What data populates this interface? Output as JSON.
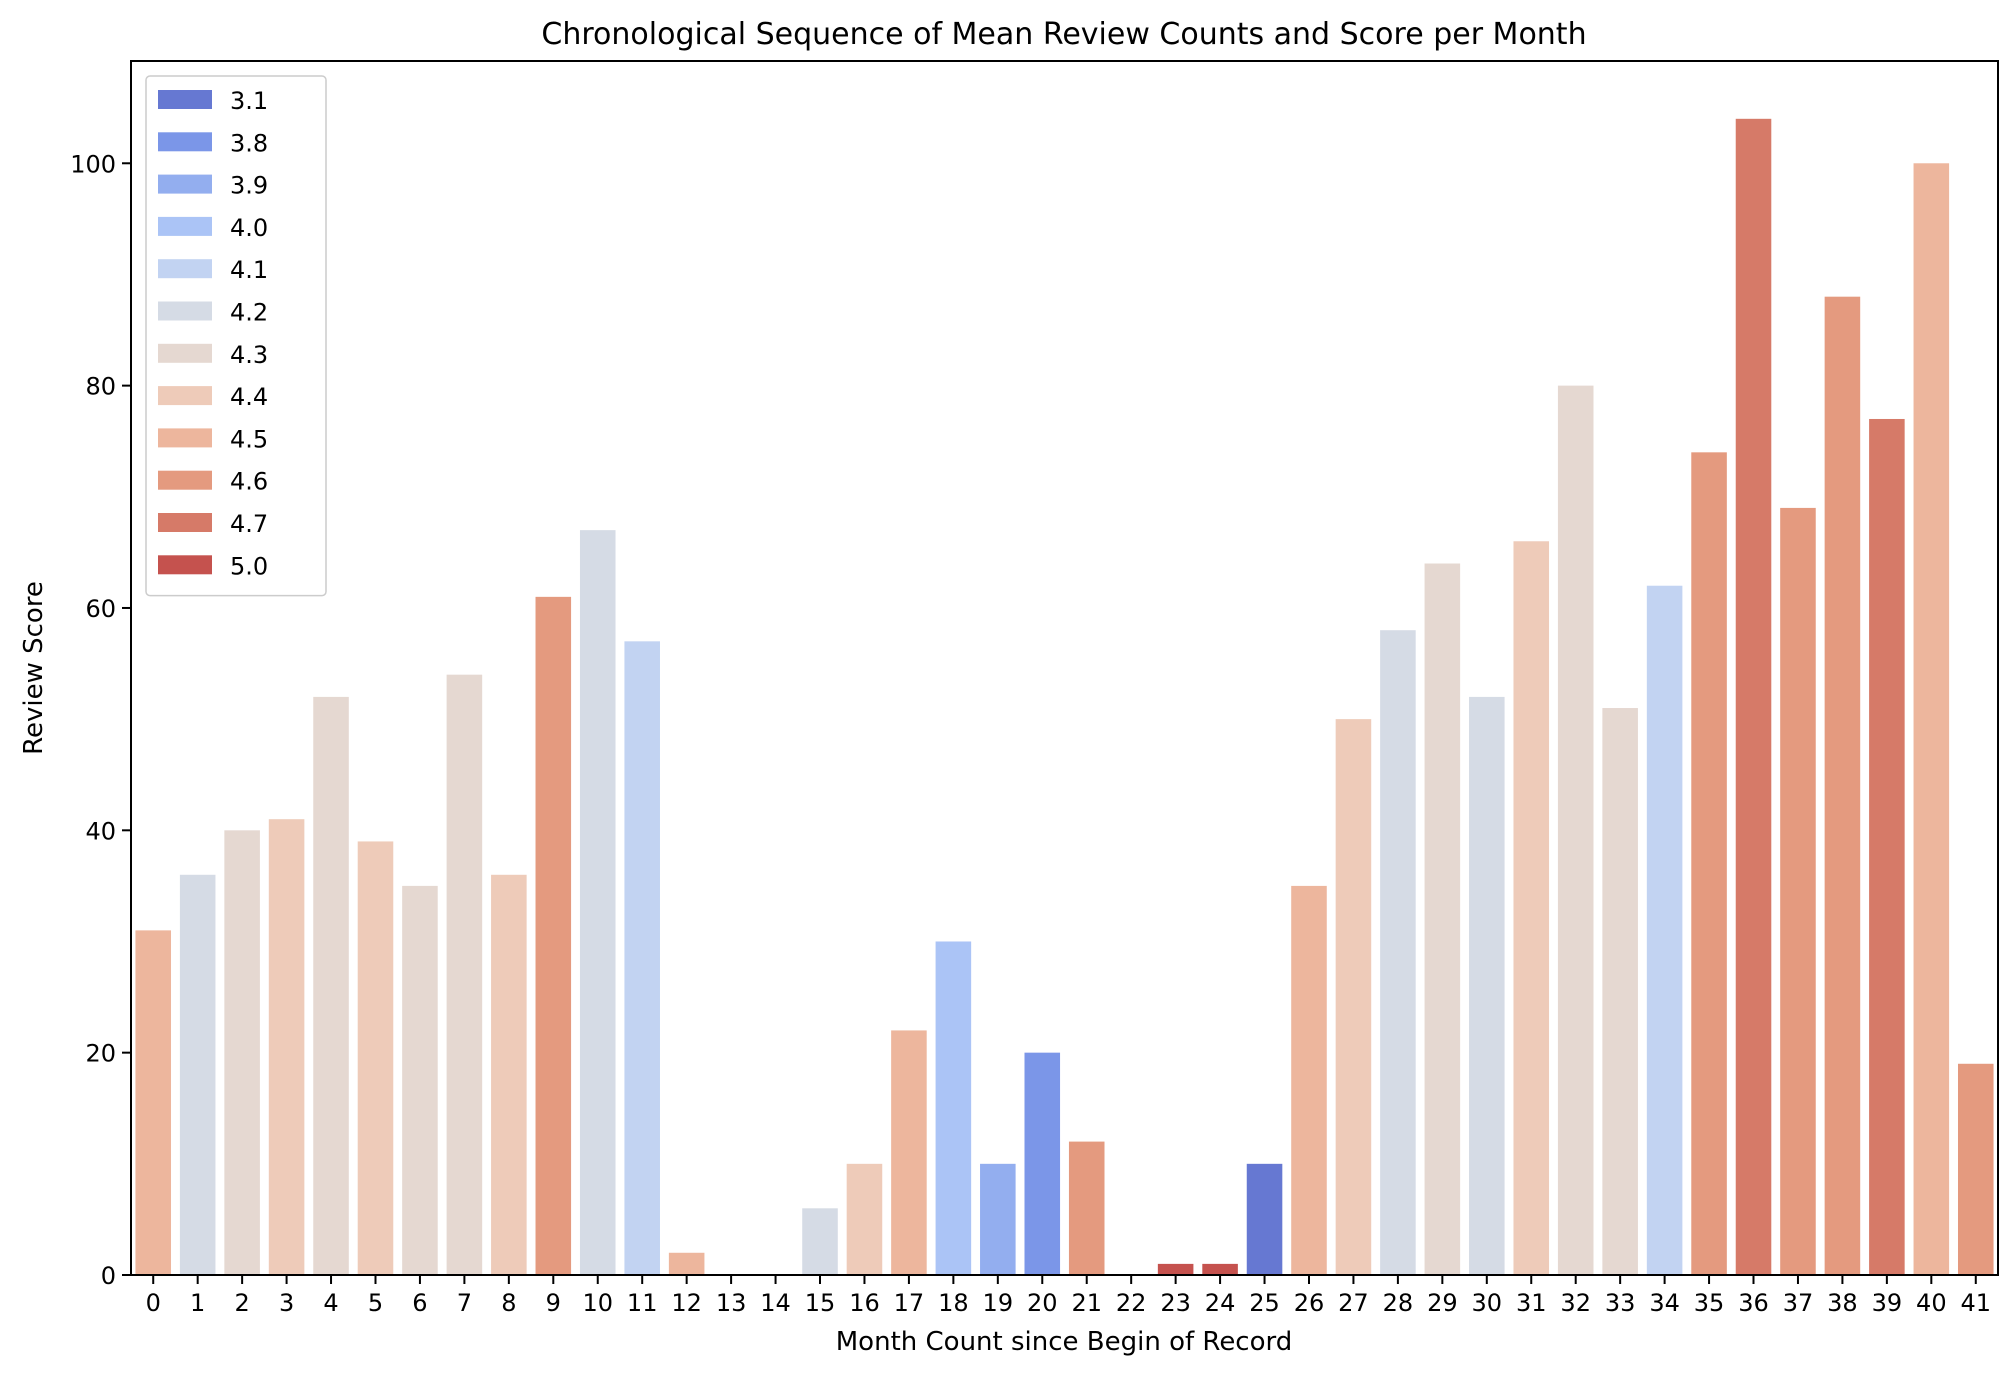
{
  "chart_data": {
    "type": "bar",
    "title": "Chronological Sequence of Mean Review Counts and Score per Month",
    "xlabel": "Month Count since Begin of Record",
    "ylabel": "Review Score",
    "ylim": [
      0,
      109.2
    ],
    "yticks": [
      0,
      20,
      40,
      60,
      80,
      100
    ],
    "grid": false,
    "legend_position": "top-left",
    "categories": [
      "0",
      "1",
      "2",
      "3",
      "4",
      "5",
      "6",
      "7",
      "8",
      "9",
      "10",
      "11",
      "12",
      "13",
      "14",
      "15",
      "16",
      "17",
      "18",
      "19",
      "20",
      "21",
      "22",
      "23",
      "24",
      "25",
      "26",
      "27",
      "28",
      "29",
      "30",
      "31",
      "32",
      "33",
      "34",
      "35",
      "36",
      "37",
      "38",
      "39",
      "40",
      "41"
    ],
    "values": [
      31,
      36,
      40,
      41,
      52,
      39,
      35,
      54,
      36,
      61,
      67,
      57,
      2,
      0,
      0,
      6,
      10,
      22,
      30,
      10,
      20,
      12,
      0,
      1,
      1,
      10,
      35,
      50,
      58,
      64,
      52,
      66,
      80,
      51,
      62,
      74,
      104,
      69,
      88,
      77,
      100,
      19
    ],
    "score": [
      "4.5",
      "4.2",
      "4.3",
      "4.4",
      "4.3",
      "4.4",
      "4.3",
      "4.3",
      "4.4",
      "4.6",
      "4.2",
      "4.1",
      "4.5",
      null,
      null,
      "4.2",
      "4.4",
      "4.5",
      "4.0",
      "3.9",
      "3.8",
      "4.6",
      null,
      "5.0",
      "5.0",
      "3.1",
      "4.5",
      "4.4",
      "4.2",
      "4.3",
      "4.2",
      "4.4",
      "4.3",
      "4.3",
      "4.1",
      "4.6",
      "4.7",
      "4.6",
      "4.6",
      "4.7",
      "4.5",
      "4.6"
    ],
    "legend": [
      {
        "label": "3.1",
        "color": "#6678d2"
      },
      {
        "label": "3.8",
        "color": "#7b96e8"
      },
      {
        "label": "3.9",
        "color": "#93aeef"
      },
      {
        "label": "4.0",
        "color": "#abc4f6"
      },
      {
        "label": "4.1",
        "color": "#c2d3f2"
      },
      {
        "label": "4.2",
        "color": "#d5dbe5"
      },
      {
        "label": "4.3",
        "color": "#e5d8d1"
      },
      {
        "label": "4.4",
        "color": "#eecbb9"
      },
      {
        "label": "4.5",
        "color": "#edb69d"
      },
      {
        "label": "4.6",
        "color": "#e49a7f"
      },
      {
        "label": "4.7",
        "color": "#d67a68"
      },
      {
        "label": "5.0",
        "color": "#c5524e"
      }
    ]
  }
}
